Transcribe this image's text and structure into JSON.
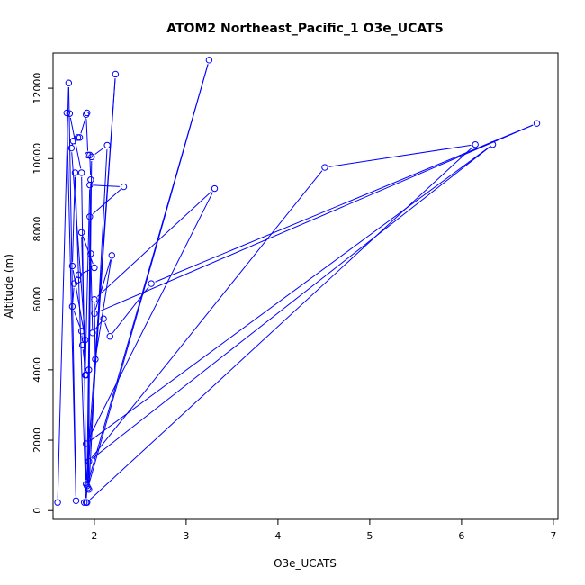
{
  "chart_data": {
    "type": "line",
    "title": "ATOM2 Northeast_Pacific_1 O3e_UCATS",
    "xlabel": "O3e_UCATS",
    "ylabel": "Altitude (m)",
    "xlim": [
      1.55,
      7.05
    ],
    "ylim": [
      -250,
      13000
    ],
    "x_ticks": [
      "2",
      "3",
      "4",
      "5",
      "6",
      "7"
    ],
    "y_ticks": [
      "0",
      "2000",
      "4000",
      "6000",
      "8000",
      "10000",
      "12000"
    ],
    "grid": false,
    "legend": "none",
    "color": "#0000ff",
    "marker": "open-circle",
    "series": [
      {
        "points": [
          [
            1.6,
            230
          ],
          [
            1.72,
            12150
          ],
          [
            1.8,
            280
          ],
          [
            1.7,
            11300
          ],
          [
            1.73,
            11280
          ],
          [
            1.86,
            9600
          ],
          [
            1.91,
            750
          ],
          [
            2.23,
            12400
          ],
          [
            1.91,
            230
          ],
          [
            1.79,
            9600
          ],
          [
            1.76,
            6950
          ],
          [
            1.9,
            4850
          ],
          [
            1.75,
            10300
          ],
          [
            1.77,
            10500
          ],
          [
            1.82,
            10600
          ],
          [
            1.84,
            10600
          ],
          [
            1.92,
            11300
          ],
          [
            1.91,
            11250
          ],
          [
            1.93,
            10100
          ],
          [
            1.95,
            10100
          ],
          [
            1.96,
            9400
          ],
          [
            1.92,
            700
          ],
          [
            3.25,
            12800
          ],
          [
            1.93,
            650
          ],
          [
            1.97,
            10050
          ],
          [
            2.14,
            10380
          ],
          [
            1.94,
            600
          ],
          [
            1.95,
            8350
          ],
          [
            2.32,
            9200
          ],
          [
            1.95,
            9250
          ],
          [
            1.9,
            3850
          ],
          [
            1.86,
            7900
          ],
          [
            2.0,
            6900
          ],
          [
            1.83,
            6700
          ],
          [
            1.82,
            6550
          ],
          [
            1.78,
            6450
          ],
          [
            1.76,
            5800
          ],
          [
            1.86,
            5100
          ],
          [
            1.87,
            4700
          ],
          [
            1.91,
            3850
          ],
          [
            1.94,
            4000
          ],
          [
            1.96,
            7300
          ],
          [
            1.98,
            5050
          ],
          [
            2.1,
            5450
          ],
          [
            2.17,
            4950
          ],
          [
            2.62,
            6450
          ],
          [
            6.82,
            11000
          ],
          [
            2.0,
            5600
          ],
          [
            2.19,
            7250
          ],
          [
            2.01,
            4300
          ],
          [
            2.0,
            6000
          ],
          [
            3.31,
            9150
          ],
          [
            1.91,
            1900
          ],
          [
            6.34,
            10400
          ],
          [
            1.94,
            1400
          ],
          [
            4.51,
            9750
          ],
          [
            6.15,
            10400
          ],
          [
            1.92,
            230
          ],
          [
            1.89,
            230
          ]
        ]
      }
    ]
  }
}
